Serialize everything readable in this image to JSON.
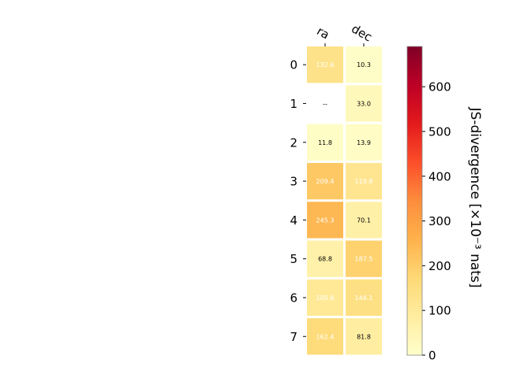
{
  "chart_data": {
    "type": "heatmap",
    "columns": [
      "ra",
      "dec"
    ],
    "rows": [
      "0",
      "1",
      "2",
      "3",
      "4",
      "5",
      "6",
      "7"
    ],
    "values": [
      [
        132.6,
        10.3
      ],
      [
        null,
        33.0
      ],
      [
        11.8,
        13.9
      ],
      [
        209.4,
        119.8
      ],
      [
        245.3,
        70.1
      ],
      [
        68.8,
        187.5
      ],
      [
        105.6,
        144.1
      ],
      [
        162.4,
        81.8
      ]
    ],
    "cell_labels": [
      [
        "132.6",
        "10.3"
      ],
      [
        "--",
        "33.0"
      ],
      [
        "11.8",
        "13.9"
      ],
      [
        "209.4",
        "119.8"
      ],
      [
        "245.3",
        "70.1"
      ],
      [
        "68.8",
        "187.5"
      ],
      [
        "105.6",
        "144.1"
      ],
      [
        "162.4",
        "81.8"
      ]
    ],
    "colorbar": {
      "label": "JS-divergence [×10⁻³ nats]",
      "range": [
        0,
        690
      ],
      "ticks": [
        "0",
        "100",
        "200",
        "300",
        "400",
        "500",
        "600"
      ],
      "tick_values": [
        0,
        100,
        200,
        300,
        400,
        500,
        600
      ],
      "colormap": "YlOrRd"
    }
  }
}
